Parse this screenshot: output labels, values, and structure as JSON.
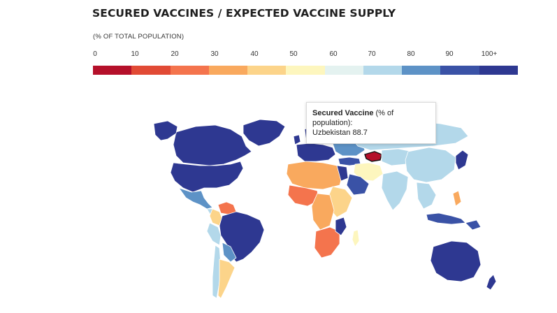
{
  "title": "SECURED VACCINES / EXPECTED VACCINE SUPPLY",
  "subtitle": "(% OF TOTAL POPULATION)",
  "legend": {
    "labels": [
      "0",
      "10",
      "20",
      "30",
      "40",
      "50",
      "60",
      "70",
      "80",
      "90",
      "100+"
    ],
    "colors": [
      "#b5102a",
      "#e14a35",
      "#f4744d",
      "#f9a95e",
      "#fcd48a",
      "#fdf6be",
      "#e4f2f0",
      "#b3d8ea",
      "#5d92c6",
      "#3a52a6",
      "#2e3891"
    ]
  },
  "tooltip": {
    "heading": "Secured Vaccine",
    "unit": "(% of population):",
    "country": "Uzbekistan",
    "value": "88.7"
  }
}
